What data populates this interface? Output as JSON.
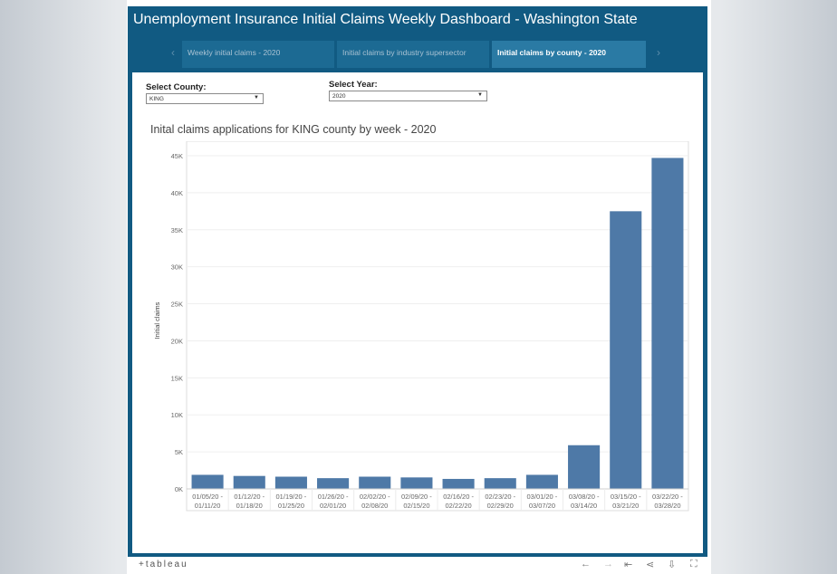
{
  "dashboard": {
    "title": "Unemployment Insurance Initial Claims Weekly Dashboard  - Washington State",
    "tabs": [
      {
        "label": "Weekly initial claims - 2020",
        "active": false
      },
      {
        "label": "Initial claims by industry supersector",
        "active": false
      },
      {
        "label": "Initial claims by county - 2020",
        "active": true
      }
    ]
  },
  "filters": {
    "county": {
      "label": "Select County:",
      "value": "KING"
    },
    "year": {
      "label": "Select Year:",
      "value": "2020"
    }
  },
  "chart_title": "Inital claims applications for KING county by week - 2020",
  "chart_data": {
    "type": "bar",
    "title": "Inital claims applications for KING county by week - 2020",
    "xlabel": "",
    "ylabel": "Initial claims",
    "categories": [
      [
        "01/05/20 -",
        "01/11/20"
      ],
      [
        "01/12/20 -",
        "01/18/20"
      ],
      [
        "01/19/20 -",
        "01/25/20"
      ],
      [
        "01/26/20 -",
        "02/01/20"
      ],
      [
        "02/02/20 -",
        "02/08/20"
      ],
      [
        "02/09/20 -",
        "02/15/20"
      ],
      [
        "02/16/20 -",
        "02/22/20"
      ],
      [
        "02/23/20 -",
        "02/29/20"
      ],
      [
        "03/01/20 -",
        "03/07/20"
      ],
      [
        "03/08/20 -",
        "03/14/20"
      ],
      [
        "03/15/20 -",
        "03/21/20"
      ],
      [
        "03/22/20 -",
        "03/28/20"
      ]
    ],
    "values": [
      1900,
      1750,
      1650,
      1450,
      1650,
      1550,
      1350,
      1450,
      1900,
      5900,
      37500,
      44700
    ],
    "ylim": [
      0,
      45000
    ],
    "yticks": [
      0,
      5000,
      10000,
      15000,
      20000,
      25000,
      30000,
      35000,
      40000,
      45000
    ],
    "ytick_labels": [
      "0K",
      "5K",
      "10K",
      "15K",
      "20K",
      "25K",
      "30K",
      "35K",
      "40K",
      "45K"
    ],
    "bar_color": "#4e79a7",
    "grid": true
  },
  "footer": {
    "logo": "+tableau"
  }
}
